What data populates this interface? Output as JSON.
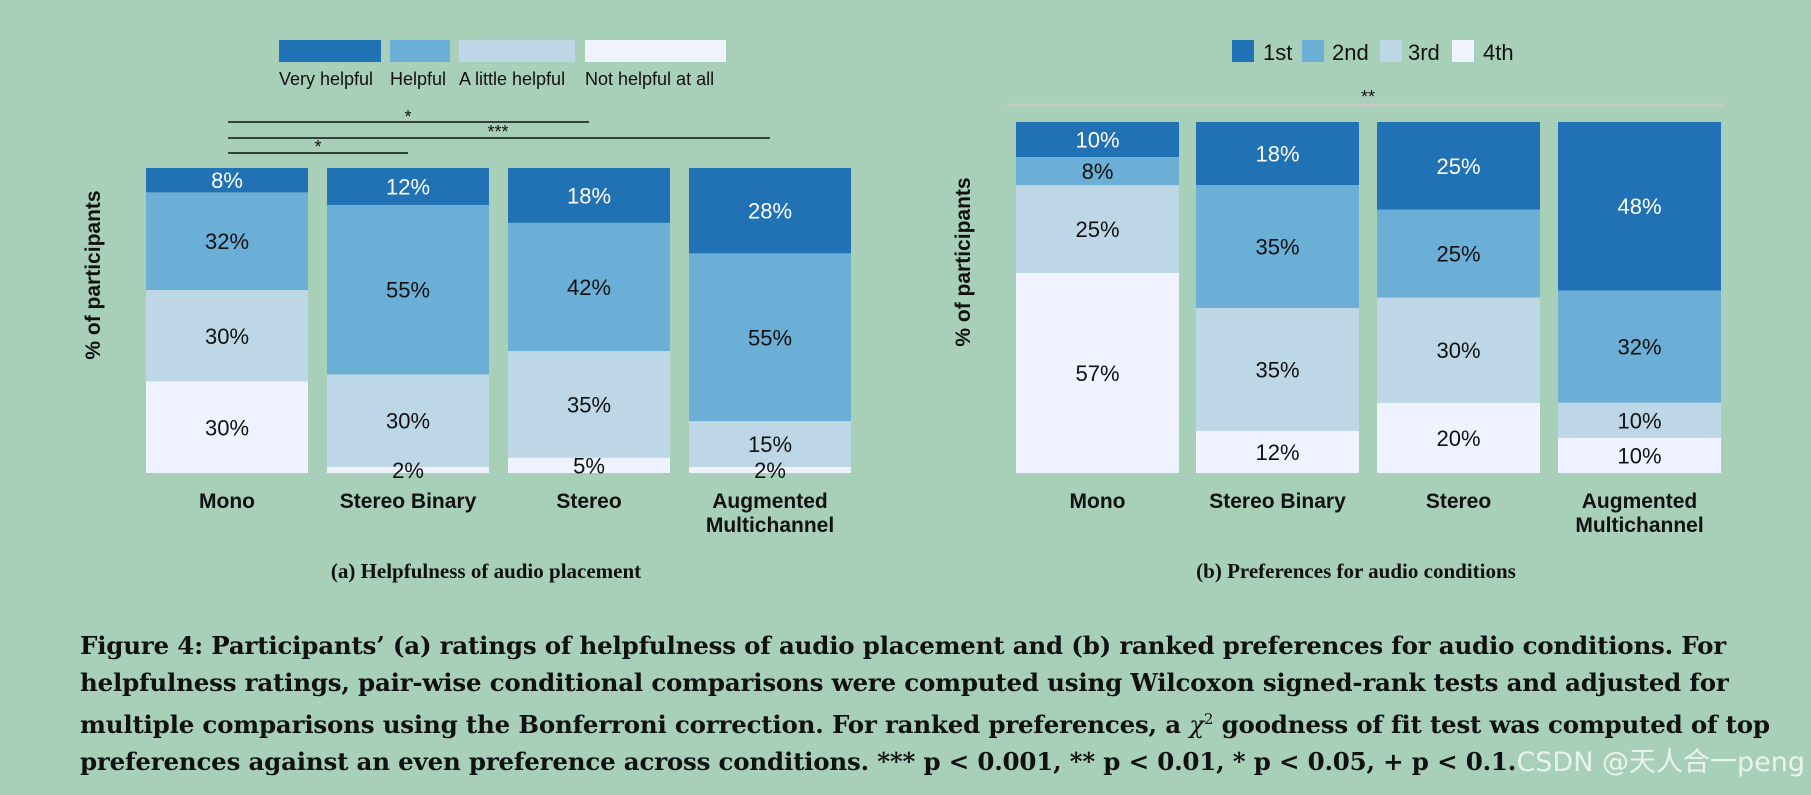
{
  "colors": {
    "very_helpful": "#2171b5",
    "helpful": "#6baed6",
    "a_little_helpful": "#bdd7e7",
    "not_helpful": "#eff3ff",
    "background": "#a8cfb8"
  },
  "chart_data": [
    {
      "type": "bar",
      "stacked": true,
      "subcaption": "(a) Helpfulness of audio placement",
      "ylabel": "% of participants",
      "categories": [
        "Mono",
        "Stereo Binary",
        "Stereo",
        "Augmented Multichannel"
      ],
      "category_lines": [
        [
          "Mono"
        ],
        [
          "Stereo Binary"
        ],
        [
          "Stereo"
        ],
        [
          "Augmented",
          "Multichannel"
        ]
      ],
      "legend_position": "top",
      "series": [
        {
          "name": "Very helpful",
          "values": [
            8,
            12,
            18,
            28
          ]
        },
        {
          "name": "Helpful",
          "values": [
            32,
            55,
            42,
            55
          ]
        },
        {
          "name": "A little helpful",
          "values": [
            30,
            30,
            35,
            15
          ]
        },
        {
          "name": "Not helpful at all",
          "values": [
            30,
            2,
            5,
            2
          ]
        }
      ],
      "significance": [
        {
          "from": "Mono",
          "to": "Stereo",
          "label": "*"
        },
        {
          "from": "Mono",
          "to": "Augmented Multichannel",
          "label": "***"
        },
        {
          "from": "Mono",
          "to": "Stereo Binary",
          "label": "*"
        }
      ]
    },
    {
      "type": "bar",
      "stacked": true,
      "subcaption": "(b) Preferences for audio conditions",
      "ylabel": "% of participants",
      "categories": [
        "Mono",
        "Stereo Binary",
        "Stereo",
        "Augmented Multichannel"
      ],
      "category_lines": [
        [
          "Mono"
        ],
        [
          "Stereo Binary"
        ],
        [
          "Stereo"
        ],
        [
          "Augmented",
          "Multichannel"
        ]
      ],
      "legend_position": "top",
      "series": [
        {
          "name": "1st",
          "values": [
            10,
            18,
            25,
            48
          ]
        },
        {
          "name": "2nd",
          "values": [
            8,
            35,
            25,
            32
          ]
        },
        {
          "name": "3rd",
          "values": [
            25,
            35,
            30,
            10
          ]
        },
        {
          "name": "4th",
          "values": [
            57,
            12,
            20,
            10
          ]
        }
      ],
      "significance": [
        {
          "from": "Mono",
          "to": "Augmented Multichannel",
          "label": "**"
        }
      ]
    }
  ],
  "caption": {
    "line1": "Figure 4: Participants’ (a) ratings of helpfulness of audio placement and (b) ranked preferences for audio conditions. For",
    "line2": "helpfulness ratings, pair-wise conditional comparisons were computed using Wilcoxon signed-rank tests and adjusted for",
    "line3_a": "multiple comparisons using the Bonferroni correction. For ranked preferences, a",
    "chi": "χ",
    "chi_sup": "2",
    "line3_b": "goodness of fit test was computed of top",
    "line4": "preferences against an even preference across conditions. *** p < 0.001, ** p < 0.01, * p < 0.05, + p < 0.1."
  },
  "watermark": "CSDN @天人合一peng"
}
